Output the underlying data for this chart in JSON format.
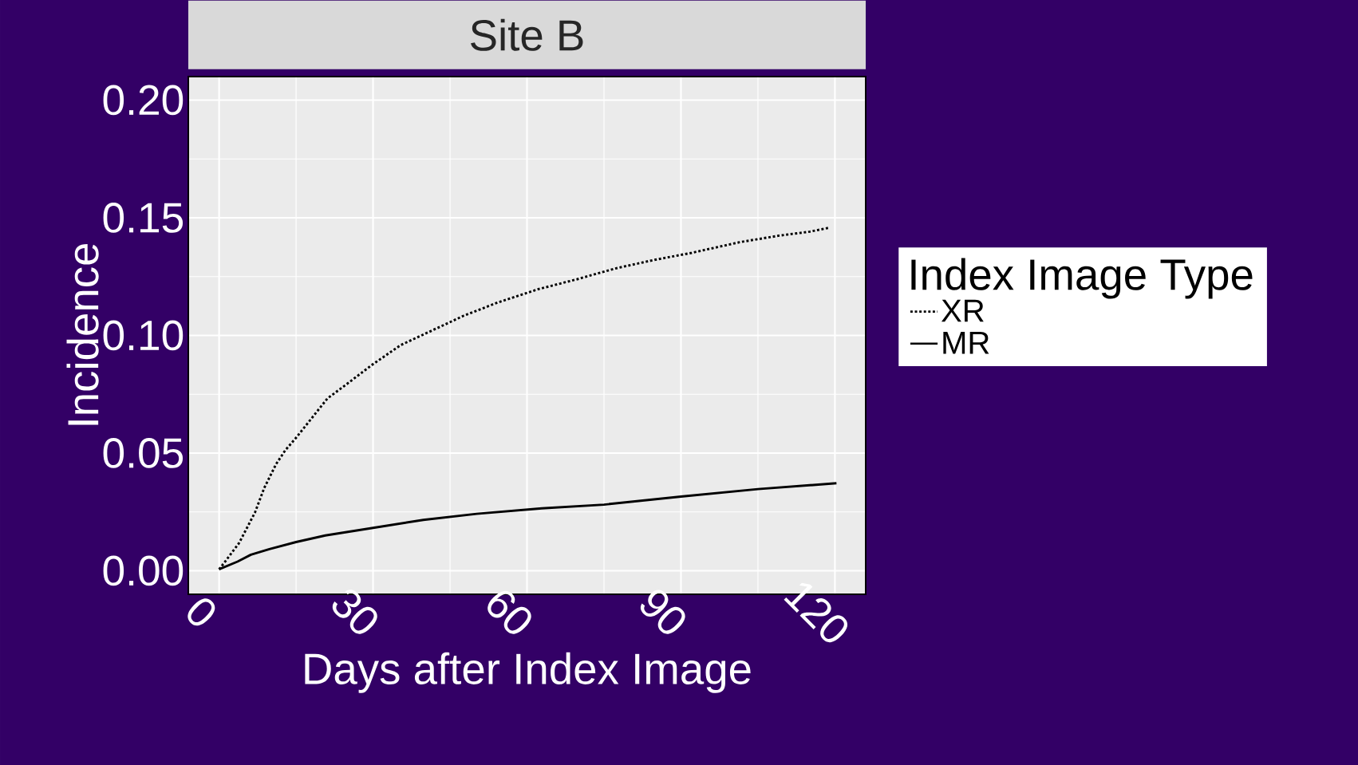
{
  "chart_data": {
    "type": "line",
    "title": "Site B",
    "xlabel": "Days after Index Image",
    "ylabel": "Incidence",
    "legend_title": "Index Image Type",
    "xlim": [
      -6,
      126
    ],
    "ylim": [
      -0.01,
      0.21
    ],
    "xticks": [
      0,
      30,
      60,
      90,
      120
    ],
    "yticks": [
      {
        "value": 0,
        "label": "0.00"
      },
      {
        "value": 0.05,
        "label": "0.05"
      },
      {
        "value": 0.1,
        "label": "0.10"
      },
      {
        "value": 0.15,
        "label": "0.15"
      },
      {
        "value": 0.2,
        "label": "0.20"
      }
    ],
    "grid": true,
    "legend": "right",
    "marker": "none",
    "series": [
      {
        "name": "XR",
        "color": "#000000",
        "line_style": "dotted",
        "x": [
          0,
          1.0,
          3.9,
          7.0,
          8.8,
          11.1,
          12.9,
          15,
          18,
          21.1,
          24.8,
          30,
          35.4,
          41.6,
          47.6,
          54.3,
          62.1,
          69.8,
          77.1,
          84.6,
          92.1,
          101.4,
          109.1,
          115.1,
          119
        ],
        "values": [
          0.0006,
          0.0034,
          0.0118,
          0.0248,
          0.0352,
          0.0453,
          0.0512,
          0.0565,
          0.0647,
          0.0732,
          0.0792,
          0.0878,
          0.0959,
          0.1022,
          0.1083,
          0.114,
          0.1196,
          0.1239,
          0.1284,
          0.132,
          0.1351,
          0.1396,
          0.1424,
          0.1441,
          0.1458
        ]
      },
      {
        "name": "MR",
        "color": "#000000",
        "line_style": "solid",
        "x": [
          0,
          3.6,
          6.2,
          9.8,
          15,
          20.7,
          30,
          39.8,
          50.2,
          62.9,
          75,
          90,
          105,
          120.3
        ],
        "values": [
          0.0006,
          0.0039,
          0.0068,
          0.0092,
          0.0122,
          0.015,
          0.0182,
          0.0216,
          0.0242,
          0.0265,
          0.0281,
          0.0315,
          0.0347,
          0.0372
        ]
      }
    ]
  }
}
